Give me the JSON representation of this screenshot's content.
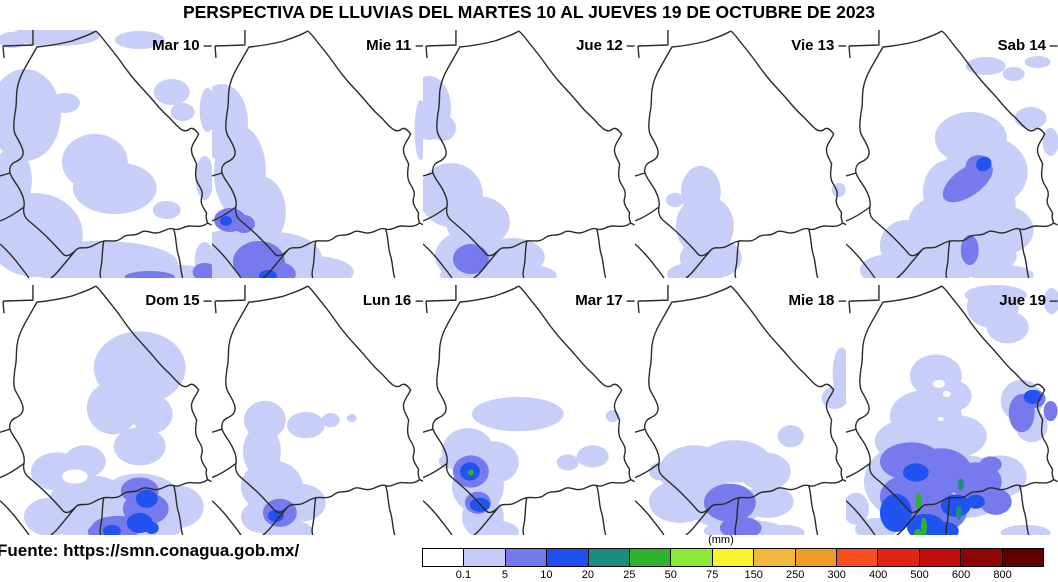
{
  "title": "PERSPECTIVA DE LLUVIAS DEL MARTES 10 AL JUEVES 19 DE OCTUBRE DE 2023",
  "footer": {
    "source_label": "Fuente: https://smn.conagua.gob.mx/"
  },
  "legend": {
    "unit": "(mm)",
    "ticks": [
      "0.1",
      "5",
      "10",
      "20",
      "25",
      "50",
      "75",
      "150",
      "250",
      "300",
      "400",
      "500",
      "600",
      "800"
    ],
    "colors": [
      "#FFFFFF",
      "#C4CCF6",
      "#7478EB",
      "#1E4FF0",
      "#1E8C7C",
      "#2EB32E",
      "#8FE838",
      "#F8F32B",
      "#F3B73C",
      "#F29B27",
      "#F94F1F",
      "#E32315",
      "#C10E0B",
      "#8E0606",
      "#600000"
    ]
  },
  "palette": {
    "l0": "#FFFFFF",
    "l1": "#C7CEF7",
    "l2": "#767AEC",
    "l3": "#2153F0",
    "l4": "#1F8C7C",
    "l5": "#2DB42D"
  },
  "panels": [
    {
      "label": "Mar 10",
      "blobs": [
        [
          "l1",
          55,
          6,
          45,
          10
        ],
        [
          "l1",
          140,
          10,
          25,
          9
        ],
        [
          "l1",
          12,
          10,
          14,
          8
        ],
        [
          "l1",
          25,
          85,
          36,
          46
        ],
        [
          "l1",
          65,
          73,
          15,
          10
        ],
        [
          "l1",
          12,
          150,
          20,
          32
        ],
        [
          "l1",
          95,
          132,
          33,
          28
        ],
        [
          "l1",
          115,
          158,
          42,
          26
        ],
        [
          "l1",
          35,
          205,
          48,
          42
        ],
        [
          "l1",
          100,
          233,
          78,
          22
        ],
        [
          "l1",
          172,
          62,
          18,
          13
        ],
        [
          "l1",
          183,
          82,
          12,
          9
        ],
        [
          "l1",
          208,
          80,
          8,
          22
        ],
        [
          "l1",
          205,
          148,
          9,
          22
        ],
        [
          "l1",
          167,
          180,
          14,
          9
        ],
        [
          "l1",
          160,
          244,
          55,
          10
        ],
        [
          "l1",
          205,
          230,
          10,
          18
        ],
        [
          "l2",
          205,
          242,
          12,
          9
        ],
        [
          "l2",
          150,
          247,
          25,
          6
        ]
      ]
    },
    {
      "label": "Mie 11",
      "blobs": [
        [
          "l1",
          10,
          92,
          26,
          38
        ],
        [
          "l1",
          28,
          142,
          26,
          46
        ],
        [
          "l1",
          48,
          182,
          26,
          36
        ],
        [
          "l1",
          16,
          232,
          42,
          32
        ],
        [
          "l1",
          62,
          228,
          48,
          26
        ],
        [
          "l1",
          100,
          242,
          42,
          16
        ],
        [
          "l1",
          209,
          100,
          6,
          30
        ],
        [
          "l2",
          18,
          190,
          16,
          12
        ],
        [
          "l2",
          32,
          194,
          11,
          9
        ],
        [
          "l2",
          47,
          232,
          26,
          21
        ],
        [
          "l2",
          62,
          244,
          22,
          13
        ],
        [
          "l3",
          14,
          191,
          6,
          5
        ],
        [
          "l3",
          56,
          246,
          9,
          6
        ]
      ]
    },
    {
      "label": "Jue 12",
      "blobs": [
        [
          "l1",
          6,
          78,
          22,
          32
        ],
        [
          "l1",
          20,
          98,
          13,
          13
        ],
        [
          "l1",
          28,
          165,
          32,
          32
        ],
        [
          "l1",
          55,
          192,
          32,
          26
        ],
        [
          "l1",
          48,
          226,
          36,
          26
        ],
        [
          "l1",
          90,
          227,
          32,
          19
        ],
        [
          "l1",
          65,
          245,
          48,
          13
        ],
        [
          "l1",
          108,
          246,
          26,
          11
        ],
        [
          "l2",
          48,
          229,
          18,
          15
        ]
      ]
    },
    {
      "label": "Vie 13",
      "blobs": [
        [
          "l1",
          66,
          162,
          20,
          26
        ],
        [
          "l1",
          70,
          196,
          29,
          31
        ],
        [
          "l1",
          76,
          228,
          31,
          21
        ],
        [
          "l1",
          58,
          244,
          26,
          11
        ],
        [
          "l1",
          40,
          170,
          9,
          7
        ],
        [
          "l1",
          204,
          160,
          7,
          7
        ]
      ]
    },
    {
      "label": "Sab 14",
      "blobs": [
        [
          "l1",
          140,
          36,
          20,
          9
        ],
        [
          "l1",
          168,
          44,
          11,
          7
        ],
        [
          "l1",
          192,
          32,
          13,
          6
        ],
        [
          "l1",
          185,
          88,
          16,
          11
        ],
        [
          "l1",
          205,
          112,
          8,
          14
        ],
        [
          "l1",
          125,
          108,
          36,
          26
        ],
        [
          "l1",
          140,
          142,
          42,
          36
        ],
        [
          "l1",
          128,
          175,
          42,
          32
        ],
        [
          "l1",
          103,
          162,
          26,
          32
        ],
        [
          "l1",
          95,
          192,
          32,
          26
        ],
        [
          "l1",
          152,
          200,
          36,
          26
        ],
        [
          "l1",
          125,
          226,
          46,
          21
        ],
        [
          "l1",
          60,
          216,
          26,
          26
        ],
        [
          "l1",
          45,
          240,
          31,
          16
        ],
        [
          "l1",
          95,
          243,
          31,
          12
        ],
        [
          "l1",
          157,
          245,
          31,
          10
        ],
        [
          "l2",
          122,
          152,
          29,
          14,
          -35
        ],
        [
          "l2",
          133,
          136,
          13,
          11
        ],
        [
          "l2",
          124,
          220,
          9,
          15
        ],
        [
          "l3",
          138,
          134,
          8,
          7,
          -35
        ]
      ]
    },
    {
      "label": "Dom 15",
      "blobs": [
        [
          "l1",
          140,
          82,
          46,
          36
        ],
        [
          "l1",
          113,
          122,
          26,
          26
        ],
        [
          "l1",
          152,
          128,
          21,
          19
        ],
        [
          "l1",
          140,
          160,
          26,
          19
        ],
        [
          "l1",
          57,
          185,
          26,
          19
        ],
        [
          "l1",
          85,
          175,
          21,
          16
        ],
        [
          "l1",
          90,
          215,
          41,
          26
        ],
        [
          "l1",
          140,
          213,
          41,
          26
        ],
        [
          "l1",
          178,
          220,
          26,
          21
        ],
        [
          "l1",
          50,
          230,
          26,
          19
        ],
        [
          "l1",
          120,
          243,
          62,
          11
        ],
        [
          "l0",
          75,
          190,
          13,
          7
        ],
        [
          "l2",
          140,
          204,
          19,
          13
        ],
        [
          "l2",
          146,
          222,
          23,
          16
        ],
        [
          "l2",
          118,
          240,
          26,
          11
        ],
        [
          "l2",
          104,
          245,
          16,
          9
        ],
        [
          "l3",
          147,
          212,
          11,
          9
        ],
        [
          "l3",
          140,
          236,
          13,
          10
        ],
        [
          "l3",
          112,
          244,
          9,
          6
        ],
        [
          "l3",
          152,
          241,
          7,
          6
        ]
      ]
    },
    {
      "label": "Lun 16",
      "blobs": [
        [
          "l1",
          53,
          134,
          21,
          19
        ],
        [
          "l1",
          50,
          165,
          19,
          26
        ],
        [
          "l1",
          94,
          139,
          19,
          13
        ],
        [
          "l1",
          119,
          134,
          9,
          7
        ],
        [
          "l1",
          140,
          132,
          5,
          4
        ],
        [
          "l1",
          60,
          200,
          31,
          26
        ],
        [
          "l1",
          88,
          216,
          26,
          19
        ],
        [
          "l1",
          50,
          230,
          21,
          16
        ],
        [
          "l1",
          75,
          244,
          26,
          11
        ],
        [
          "l2",
          68,
          226,
          17,
          14
        ],
        [
          "l3",
          64,
          229,
          8,
          6
        ]
      ]
    },
    {
      "label": "Mar 17",
      "blobs": [
        [
          "l1",
          95,
          128,
          46,
          17
        ],
        [
          "l1",
          45,
          165,
          26,
          23
        ],
        [
          "l1",
          70,
          176,
          26,
          21
        ],
        [
          "l1",
          55,
          200,
          26,
          26
        ],
        [
          "l1",
          60,
          230,
          21,
          21
        ],
        [
          "l1",
          75,
          245,
          21,
          11
        ],
        [
          "l1",
          170,
          170,
          16,
          11
        ],
        [
          "l1",
          190,
          130,
          7,
          6
        ],
        [
          "l1",
          145,
          176,
          11,
          8
        ],
        [
          "l1",
          25,
          175,
          9,
          7
        ],
        [
          "l2",
          48,
          185,
          18,
          16
        ],
        [
          "l2",
          55,
          216,
          13,
          11
        ],
        [
          "l3",
          47,
          185,
          10,
          9
        ],
        [
          "l3",
          57,
          218,
          10,
          7
        ],
        [
          "l5",
          48,
          186,
          3,
          3
        ]
      ]
    },
    {
      "label": "Mie 18",
      "blobs": [
        [
          "l1",
          60,
          185,
          36,
          26
        ],
        [
          "l1",
          100,
          175,
          36,
          21
        ],
        [
          "l1",
          130,
          185,
          26,
          19
        ],
        [
          "l1",
          45,
          215,
          31,
          21
        ],
        [
          "l1",
          90,
          220,
          36,
          21
        ],
        [
          "l1",
          133,
          215,
          26,
          16
        ],
        [
          "l1",
          110,
          244,
          41,
          11
        ],
        [
          "l1",
          156,
          150,
          13,
          11
        ],
        [
          "l1",
          25,
          185,
          11,
          9
        ],
        [
          "l1",
          207,
          88,
          9,
          26
        ],
        [
          "l1",
          200,
          112,
          13,
          11
        ],
        [
          "l1",
          150,
          246,
          20,
          8
        ],
        [
          "l2",
          95,
          216,
          26,
          19
        ],
        [
          "l2",
          106,
          241,
          21,
          11
        ]
      ]
    },
    {
      "label": "Jue 19",
      "blobs": [
        [
          "l1",
          150,
          10,
          31,
          10
        ],
        [
          "l1",
          147,
          22,
          26,
          21
        ],
        [
          "l1",
          162,
          42,
          21,
          16
        ],
        [
          "l1",
          206,
          16,
          8,
          13
        ],
        [
          "l1",
          176,
          115,
          21,
          21
        ],
        [
          "l1",
          186,
          140,
          16,
          16
        ],
        [
          "l1",
          90,
          90,
          26,
          21
        ],
        [
          "l1",
          105,
          110,
          21,
          16
        ],
        [
          "l1",
          80,
          130,
          36,
          26
        ],
        [
          "l1",
          60,
          155,
          31,
          21
        ],
        [
          "l1",
          110,
          150,
          31,
          21
        ],
        [
          "l1",
          75,
          195,
          57,
          42
        ],
        [
          "l1",
          120,
          200,
          42,
          31
        ],
        [
          "l1",
          155,
          190,
          26,
          21
        ],
        [
          "l1",
          10,
          222,
          13,
          16
        ],
        [
          "l1",
          30,
          242,
          21,
          11
        ],
        [
          "l1",
          180,
          246,
          25,
          8
        ],
        [
          "l0",
          93,
          98,
          6,
          4
        ],
        [
          "l0",
          101,
          108,
          4,
          3
        ],
        [
          "l0",
          95,
          133,
          3,
          2
        ],
        [
          "l2",
          65,
          175,
          31,
          19
        ],
        [
          "l2",
          95,
          185,
          31,
          23
        ],
        [
          "l2",
          130,
          195,
          26,
          19
        ],
        [
          "l2",
          60,
          210,
          26,
          21
        ],
        [
          "l2",
          90,
          225,
          31,
          21
        ],
        [
          "l2",
          150,
          215,
          16,
          13
        ],
        [
          "l2",
          176,
          127,
          13,
          19
        ],
        [
          "l2",
          189,
          113,
          11,
          9
        ],
        [
          "l2",
          145,
          178,
          11,
          8
        ],
        [
          "l2",
          205,
          125,
          7,
          10
        ],
        [
          "l3",
          70,
          186,
          13,
          9
        ],
        [
          "l3",
          50,
          226,
          16,
          19
        ],
        [
          "l3",
          80,
          240,
          19,
          13
        ],
        [
          "l3",
          110,
          219,
          15,
          11
        ],
        [
          "l3",
          100,
          244,
          13,
          9
        ],
        [
          "l3",
          187,
          111,
          9,
          7
        ],
        [
          "l3",
          130,
          215,
          9,
          7
        ],
        [
          "l4",
          115,
          198,
          3,
          6
        ],
        [
          "l4",
          113,
          226,
          3,
          7
        ],
        [
          "l5",
          73,
          215,
          3,
          9
        ],
        [
          "l5",
          78,
          240,
          3,
          9
        ],
        [
          "l5",
          72,
          248,
          4,
          6
        ]
      ]
    }
  ]
}
